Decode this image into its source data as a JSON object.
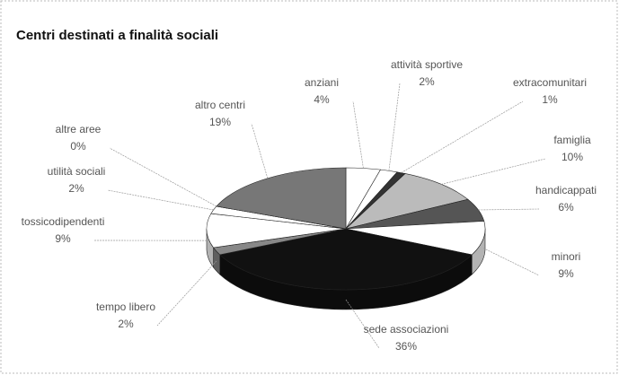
{
  "chart_data": {
    "type": "pie",
    "title": "Centri destinati a finalità sociali",
    "categories": [
      "anziani",
      "attività sportive",
      "extracomunitari",
      "famiglia",
      "handicappati",
      "minori",
      "sede associazioni",
      "tempo libero",
      "tossicodipendenti",
      "utilità sociali",
      "altre aree",
      "altro centri"
    ],
    "values": [
      4,
      2,
      1,
      10,
      6,
      9,
      36,
      2,
      9,
      2,
      0,
      19
    ],
    "value_labels": [
      "4%",
      "2%",
      "1%",
      "10%",
      "6%",
      "9%",
      "36%",
      "2%",
      "9%",
      "2%",
      "0%",
      "19%"
    ],
    "colors": [
      "#ffffff",
      "#ffffff",
      "#333333",
      "#bbbbbb",
      "#555555",
      "#ffffff",
      "#111111",
      "#888888",
      "#ffffff",
      "#ffffff",
      "#444444",
      "#777777"
    ]
  }
}
